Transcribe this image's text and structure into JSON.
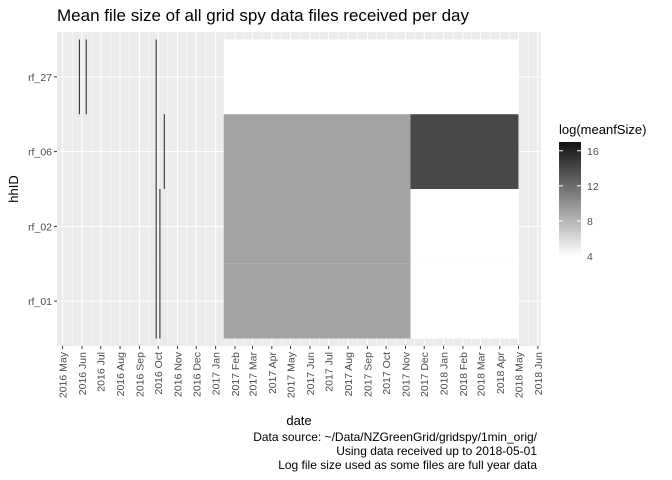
{
  "chart_data": {
    "type": "heatmap",
    "title": "Mean file size of all grid spy data files received per day",
    "xlabel": "date",
    "ylabel": "hhID",
    "x_ticks": [
      "2016 May",
      "2016 Jun",
      "2016 Jul",
      "2016 Aug",
      "2016 Sep",
      "2016 Oct",
      "2016 Nov",
      "2016 Dec",
      "2017 Jan",
      "2017 Feb",
      "2017 Mar",
      "2017 Apr",
      "2017 May",
      "2017 Jun",
      "2017 Jul",
      "2017 Aug",
      "2017 Sep",
      "2017 Oct",
      "2017 Nov",
      "2017 Dec",
      "2018 Jan",
      "2018 Feb",
      "2018 Mar",
      "2018 Apr",
      "2018 May",
      "2018 Jun"
    ],
    "y_categories": [
      "rf_01",
      "rf_02",
      "rf_06",
      "rf_27"
    ],
    "xlim": [
      "2016-04-22",
      "2018-06-06"
    ],
    "grid": true,
    "legend": {
      "title": "log(meanfSize)",
      "position": "right",
      "ticks": [
        4,
        8,
        12,
        16
      ],
      "range": [
        4,
        17
      ],
      "low_color": "#ffffff",
      "high_color": "#111111"
    },
    "tiles": [
      {
        "hhID": "rf_27",
        "start": "2016-05-27",
        "end": "2016-05-28",
        "value": 16
      },
      {
        "hhID": "rf_27",
        "start": "2016-06-07",
        "end": "2016-06-08",
        "value": 16
      },
      {
        "hhID": "rf_27",
        "start": "2016-09-27",
        "end": "2016-09-28",
        "value": 16
      },
      {
        "hhID": "rf_06",
        "start": "2016-09-27",
        "end": "2016-09-28",
        "value": 16
      },
      {
        "hhID": "rf_06",
        "start": "2016-10-10",
        "end": "2016-10-11",
        "value": 16
      },
      {
        "hhID": "rf_02",
        "start": "2016-09-27",
        "end": "2016-09-28",
        "value": 16
      },
      {
        "hhID": "rf_01",
        "start": "2016-09-27",
        "end": "2016-09-28",
        "value": 16
      },
      {
        "hhID": "rf_02",
        "start": "2016-10-03",
        "end": "2016-10-04",
        "value": 16
      },
      {
        "hhID": "rf_01",
        "start": "2016-10-03",
        "end": "2016-10-04",
        "value": 16
      },
      {
        "hhID": "rf_27",
        "start": "2017-01-14",
        "end": "2018-05-01",
        "value": 4
      },
      {
        "hhID": "rf_06",
        "start": "2017-01-14",
        "end": "2017-11-09",
        "value": 9
      },
      {
        "hhID": "rf_02",
        "start": "2017-01-14",
        "end": "2017-11-09",
        "value": 9
      },
      {
        "hhID": "rf_01",
        "start": "2017-01-14",
        "end": "2017-11-09",
        "value": 9
      },
      {
        "hhID": "rf_06",
        "start": "2017-11-09",
        "end": "2018-05-01",
        "value": 14
      },
      {
        "hhID": "rf_02",
        "start": "2017-11-09",
        "end": "2018-05-01",
        "value": 4
      },
      {
        "hhID": "rf_01",
        "start": "2017-11-09",
        "end": "2018-05-01",
        "value": 4
      }
    ]
  },
  "caption": [
    "Data source: ~/Data/NZGreenGrid/gridspy/1min_orig/",
    "Using data received up to 2018-05-01",
    "Log file size used as some files are full year data"
  ],
  "colors": {
    "panel_bg": "#ebebeb",
    "grid_major": "#ffffff",
    "axis_text": "#4d4d4d"
  }
}
